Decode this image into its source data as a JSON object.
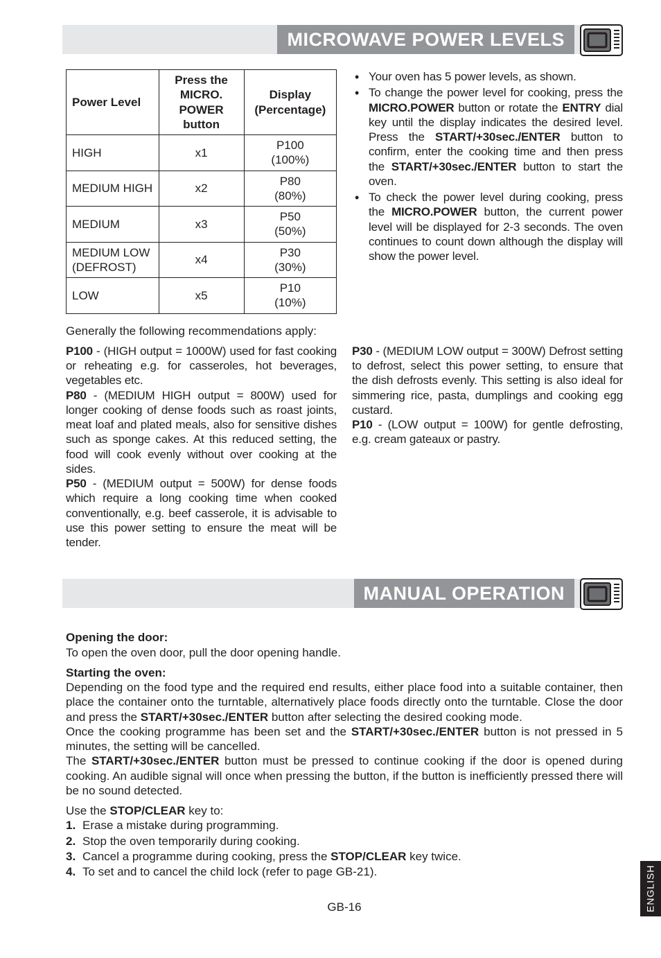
{
  "headers": {
    "power_levels": "MICROWAVE POWER LEVELS",
    "manual_op": "MANUAL OPERATION"
  },
  "table": {
    "cols": [
      "Power Level",
      "Press the <b>MICRO. POWER</b> button",
      "Display (Percentage)"
    ],
    "rows": [
      [
        "HIGH",
        "x1",
        "P100<br>(100%)"
      ],
      [
        "MEDIUM HIGH",
        "x2",
        "P80<br>(80%)"
      ],
      [
        "MEDIUM",
        "x3",
        "P50<br>(50%)"
      ],
      [
        "MEDIUM LOW (DEFROST)",
        "x4",
        "P30<br>(30%)"
      ],
      [
        "LOW",
        "x5",
        "P10<br>(10%)"
      ]
    ]
  },
  "bullets": [
    "Your oven has 5 power levels, as shown.",
    "To change the power level for cooking, press the <b>MICRO.POWER</b> button or rotate the <b>ENTRY</b> dial key until the display indicates the desired level. Press the <b>START/+30sec./ENTER</b> button to confirm, enter the cooking time and then press the <b>START/+30sec./EN­TER</b> button to start the oven.",
    "To check the power level during cooking, press the <b>MICRO.POWER</b> button, the current power level will be displayed for 2-3 seconds. The oven continues to count down although the display will show the power level."
  ],
  "recommend_intro": "Generally the following recommendations apply:",
  "rec_left": "<b>P100</b> - (HIGH output = 1000W) used for fast cooking or reheating e.g. for casseroles, hot beverages, vegetables etc.<br><b>P80</b> - (MEDIUM HIGH output = 800W) used for longer cooking of dense foods such as roast joints, meat loaf and plated meals, also for sensitive dishes such as sponge cakes. At this reduced setting, the food will cook evenly without over cooking at the sides.<br><b>P50</b> - (MEDIUM output = 500W) for dense foods which require a long cooking time when cooked conventionally, e.g. beef casserole, it is advisable to use this power setting to ensure the meat will be tender.",
  "rec_right": "<b>P30</b> - (MEDIUM LOW output = 300W) Defrost setting to defrost, select this power setting, to ensure that the dish defrosts evenly. This setting is also ideal for simmering rice, pasta, dumplings and cooking egg custard.<br><b>P10</b> - (LOW output = 100W) for gentle defrosting, e.g. cream gateaux or pastry.",
  "manual": {
    "opening_h": "Opening the door:",
    "opening_t": "To open the oven door, pull the door opening handle.",
    "starting_h": "Starting the oven:",
    "starting_t": "Depending on the food type and the required end results,  either place food into a suitable container, then place the container onto the turntable, alternatively place foods directly onto the turntable. Close the door and press the <b>START/+30sec./ENTER</b> button after selecting the desired cooking mode.<br>Once the cooking programme has been set and the <b>START/+30sec./ENTER</b> button is not pressed in 5 minutes, the setting will be cancelled.<br>The <b>START/+30sec./ENTER</b> button must be pressed to continue cooking if the door is opened during cooking. An audible signal will once when pressing the button, if the button is inefficiently pressed there will be no sound detected.",
    "stop_h": "Use the <b>STOP/CLEAR</b> key to:",
    "stop_items": [
      "Erase a mistake during programming.",
      "Stop the oven temporarily during cooking.",
      "Cancel a programme during cooking, press the <b>STOP/CLEAR</b> key twice.",
      "To set and to cancel the child lock (refer to page GB-21)."
    ]
  },
  "side_tab": "ENGLISH",
  "page_num": "GB-16",
  "icon": {
    "outline": "#231f20",
    "fill_outer": "#ffffff",
    "fill_screen": "#6d6e71"
  }
}
